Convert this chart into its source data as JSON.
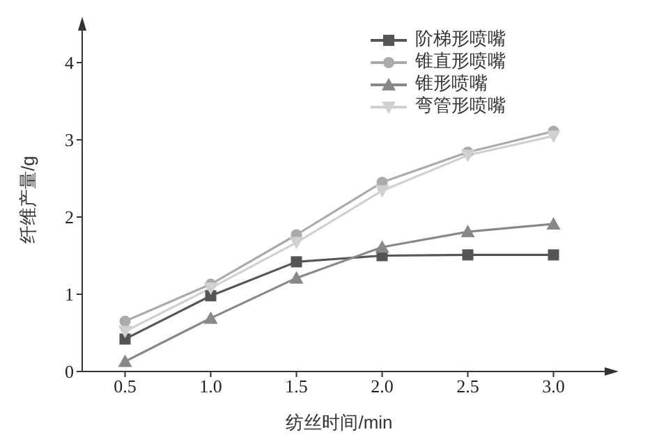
{
  "chart_data": {
    "type": "line",
    "xlabel": "纺丝时间/min",
    "ylabel": "纤维产量/g",
    "x": [
      0.5,
      1.0,
      1.5,
      2.0,
      2.5,
      3.0
    ],
    "xlim": [
      0.25,
      3.25
    ],
    "xticks": [
      {
        "value": 0.5,
        "label": "0.5"
      },
      {
        "value": 1.0,
        "label": "1.0"
      },
      {
        "value": 1.5,
        "label": "1.5"
      },
      {
        "value": 2.0,
        "label": "2.0"
      },
      {
        "value": 2.5,
        "label": "2.5"
      },
      {
        "value": 3.0,
        "label": "3.0"
      }
    ],
    "ylim": [
      0,
      4.45
    ],
    "yticks": [
      0,
      1,
      2,
      3,
      4
    ],
    "grid": false,
    "legend": "top right",
    "line_style": "solid",
    "series": [
      {
        "name": "阶梯形喷嘴",
        "color": "#555555",
        "marker": "square",
        "values": [
          0.42,
          0.98,
          1.42,
          1.5,
          1.51,
          1.51
        ]
      },
      {
        "name": "锥直形喷嘴",
        "color": "#aaaaaa",
        "marker": "circle",
        "values": [
          0.65,
          1.13,
          1.77,
          2.45,
          2.84,
          3.11
        ]
      },
      {
        "name": "锥形喷嘴",
        "color": "#888888",
        "marker": "triangle",
        "values": [
          0.13,
          0.69,
          1.21,
          1.61,
          1.81,
          1.91
        ]
      },
      {
        "name": "弯管形喷嘴",
        "color": "#d0d0d0",
        "marker": "triangle-down",
        "values": [
          0.52,
          1.08,
          1.67,
          2.34,
          2.8,
          3.05
        ]
      }
    ]
  }
}
